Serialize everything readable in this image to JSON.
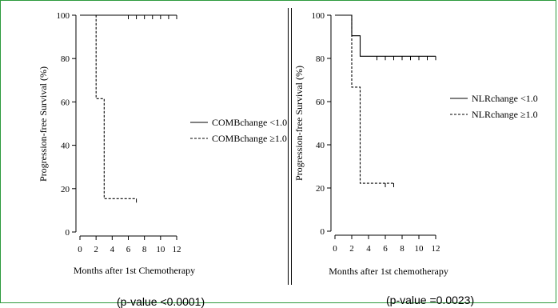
{
  "chart_data": [
    {
      "type": "line",
      "title": "",
      "xlabel": "Months after 1st Chemotherapy",
      "ylabel": "Progression-free Survival (%)",
      "xlim": [
        0,
        12
      ],
      "ylim": [
        0,
        100
      ],
      "xticks": [
        "0",
        "2",
        "4",
        "6",
        "8",
        "10",
        "12"
      ],
      "yticks": [
        "0",
        "20",
        "40",
        "60",
        "80",
        "100"
      ],
      "grid": false,
      "legend_position": "right",
      "footnote": "(p-value <0.0001)",
      "series": [
        {
          "name": "COMBchange <1.0",
          "style": "solid",
          "steps": [
            [
              0,
              100
            ],
            [
              12,
              100
            ]
          ],
          "censor": [
            6,
            7,
            8,
            9,
            10,
            11,
            12
          ],
          "censor_y": [
            100,
            100,
            100,
            100,
            100,
            100,
            100
          ]
        },
        {
          "name": "COMBchange ≥1.0",
          "style": "dashed",
          "steps": [
            [
              0,
              100
            ],
            [
              2,
              100
            ],
            [
              2,
              61.5
            ],
            [
              3,
              61.5
            ],
            [
              3,
              15.4
            ],
            [
              7,
              15.4
            ]
          ],
          "censor": [
            7
          ],
          "censor_y": [
            15.4
          ]
        }
      ]
    },
    {
      "type": "line",
      "title": "",
      "xlabel": "Months after 1st chemotherapy",
      "ylabel": "Progression-free Survival (%)",
      "xlim": [
        0,
        12
      ],
      "ylim": [
        0,
        100
      ],
      "xticks": [
        "0",
        "2",
        "4",
        "6",
        "8",
        "10",
        "12"
      ],
      "yticks": [
        "0",
        "20",
        "40",
        "60",
        "80",
        "100"
      ],
      "grid": false,
      "legend_position": "top-right",
      "footnote": "(p-value =0.0023)",
      "series": [
        {
          "name": "NLRchange <1.0",
          "style": "solid",
          "steps": [
            [
              0,
              100
            ],
            [
              2,
              100
            ],
            [
              2,
              90.5
            ],
            [
              3,
              90.5
            ],
            [
              3,
              81
            ],
            [
              12,
              81
            ]
          ],
          "censor": [
            5,
            6,
            7,
            8,
            9,
            10,
            11,
            12
          ],
          "censor_y": [
            81,
            81,
            81,
            81,
            81,
            81,
            81,
            81
          ]
        },
        {
          "name": "NLRchange ≥1.0",
          "style": "dashed",
          "steps": [
            [
              0,
              100
            ],
            [
              2,
              100
            ],
            [
              2,
              66.7
            ],
            [
              3,
              66.7
            ],
            [
              3,
              22.2
            ],
            [
              7,
              22.2
            ]
          ],
          "censor": [
            6,
            7
          ],
          "censor_y": [
            22.2,
            22.2
          ]
        }
      ]
    }
  ]
}
